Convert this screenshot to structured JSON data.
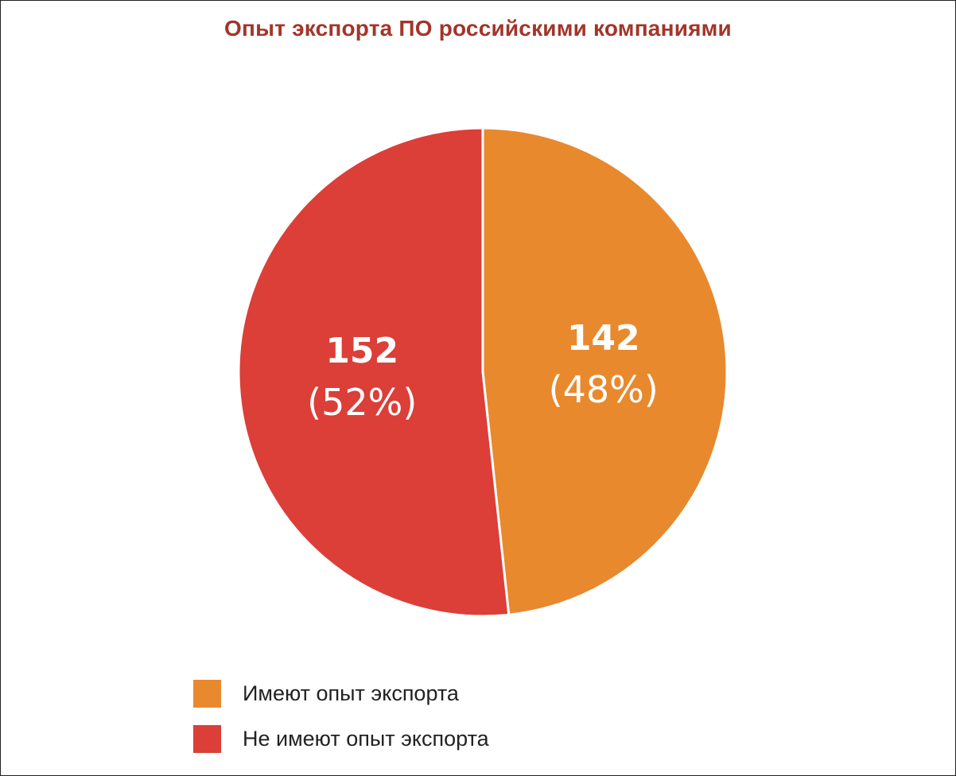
{
  "chart_data": {
    "type": "pie",
    "title": "Опыт экспорта ПО российскими компаниями",
    "slices": [
      {
        "label": "Имеют опыт экспорта",
        "value": 142,
        "value_label": "142",
        "percent_label": "(48%)",
        "color": "#e8892e"
      },
      {
        "label": "Не имеют опыт экспорта",
        "value": 152,
        "value_label": "152",
        "percent_label": "(52%)",
        "color": "#dc3e38"
      }
    ],
    "legend_position": "bottom-left",
    "start_angle": "12 o'clock",
    "direction": "clockwise"
  }
}
